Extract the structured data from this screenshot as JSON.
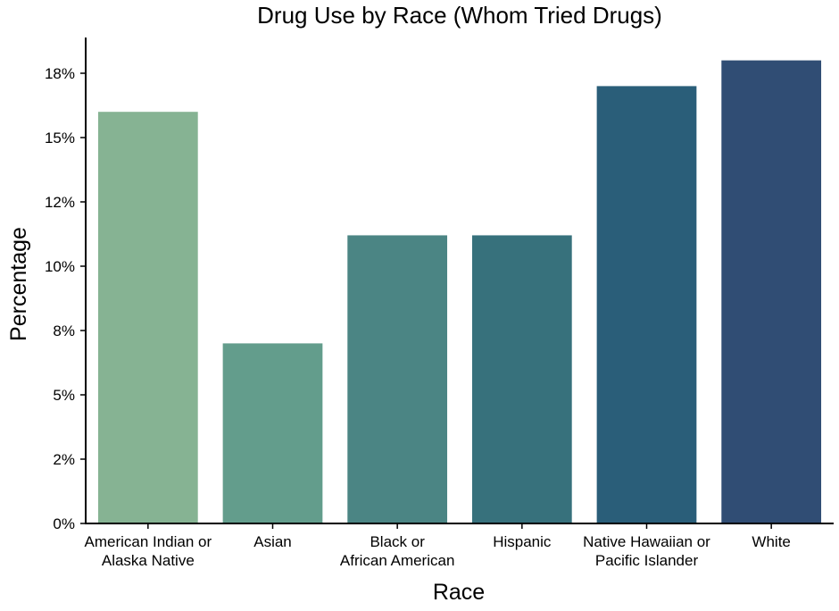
{
  "chart_data": {
    "type": "bar",
    "title": "Drug Use by Race (Whom Tried Drugs)",
    "xlabel": "Race",
    "ylabel": "Percentage",
    "categories": [
      [
        "American Indian or",
        "Alaska Native"
      ],
      [
        "Asian"
      ],
      [
        "Black or",
        "African American"
      ],
      [
        "Hispanic"
      ],
      [
        "Native Hawaiian or",
        "Pacific Islander"
      ],
      [
        "White"
      ]
    ],
    "values": [
      16.0,
      7.0,
      11.2,
      11.2,
      17.0,
      18.0
    ],
    "colors": [
      "#86b393",
      "#639d8c",
      "#4b8584",
      "#37717c",
      "#2a5e79",
      "#304d74"
    ],
    "ylim": [
      0,
      19
    ],
    "yticks": [
      0,
      2.5,
      5,
      7.5,
      10,
      12.5,
      15,
      17.5
    ],
    "ytick_labels": [
      "0%",
      "2%",
      "5%",
      "8%",
      "10%",
      "12%",
      "15%",
      "18%"
    ],
    "grid": false,
    "legend": "none"
  }
}
